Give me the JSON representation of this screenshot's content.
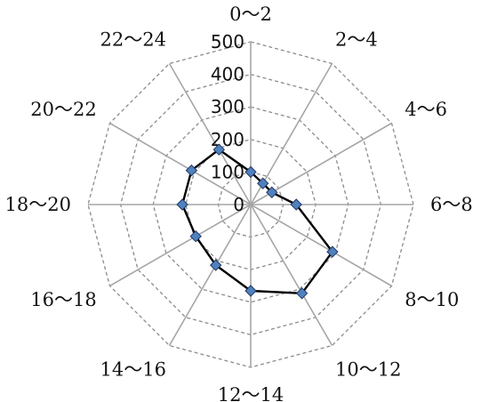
{
  "chart_data": {
    "type": "radar",
    "categories": [
      "0～2",
      "2～4",
      "4～6",
      "6～8",
      "8～10",
      "10～12",
      "12～14",
      "14～16",
      "16～18",
      "18～20",
      "20～22",
      "22～24"
    ],
    "values": [
      100,
      75,
      75,
      140,
      290,
      315,
      265,
      215,
      195,
      210,
      210,
      195
    ],
    "r_ticks": [
      0,
      100,
      200,
      300,
      400,
      500
    ],
    "rlim": [
      0,
      500
    ],
    "grid": true,
    "colors": {
      "line": "#000000",
      "marker": "#4f81bd",
      "marker_edge": "#1f3864",
      "spoke": "#a6a6a6",
      "ring": "#8c8c8c"
    }
  }
}
